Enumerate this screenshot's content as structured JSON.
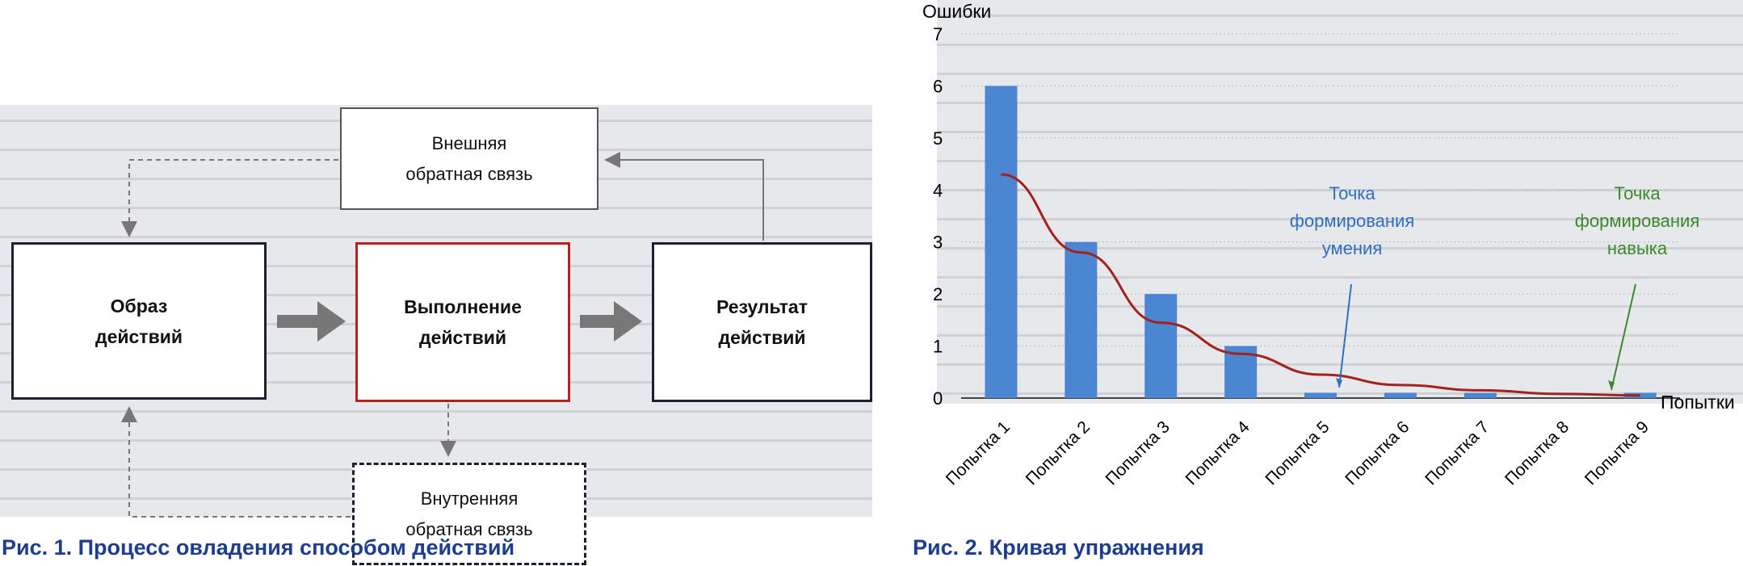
{
  "figure1": {
    "caption": "Рис. 1. Процесс овладения способом действий",
    "box_obraz": "Образ\nдействий",
    "box_vypolnenie": "Выполнение\nдействий",
    "box_result": "Результат\nдействий",
    "box_external": "Внешняя\nобратная связь",
    "box_internal": "Внутренняя\nобратная связь"
  },
  "figure2": {
    "caption": "Рис. 2. Кривая упражнения",
    "annotation_skill_point": "Точка\nформирования\nумения",
    "annotation_habit_point": "Точка\nформирования\nнавыка"
  },
  "chart_data": {
    "type": "bar",
    "ylabel": "Ошибки",
    "xlabel": "Попытки",
    "ylim": [
      0,
      7
    ],
    "yticks": [
      "0",
      "1",
      "2",
      "3",
      "4",
      "5",
      "6",
      "7"
    ],
    "categories": [
      "Попытка 1",
      "Попытка 2",
      "Попытка 3",
      "Попытка 4",
      "Попытка 5",
      "Попытка 6",
      "Попытка 7",
      "Попытка 8",
      "Попытка 9"
    ],
    "values": [
      6,
      3,
      2,
      1,
      0.1,
      0.1,
      0.1,
      0,
      0.1
    ],
    "curve": [
      4.3,
      2.8,
      1.45,
      0.85,
      0.45,
      0.25,
      0.15,
      0.08,
      0.05
    ],
    "grid": true,
    "colors": {
      "bar": "#4a86d1",
      "curve": "#a5211b",
      "annotation_blue": "#2f6fc1",
      "annotation_green": "#3a8a2a"
    }
  }
}
